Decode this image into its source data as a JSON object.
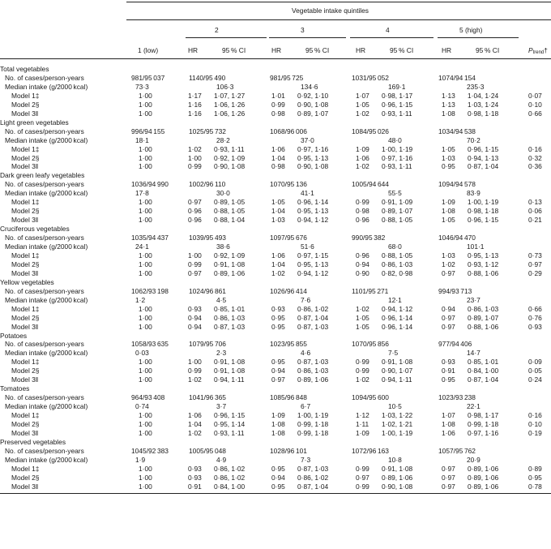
{
  "header": {
    "super": "Vegetable intake quintiles",
    "q1": "1 (low)",
    "q2": "2",
    "q3": "3",
    "q4": "4",
    "q5": "5 (high)",
    "hr": "HR",
    "ci": "95 % CI",
    "ptrend_main": "P",
    "ptrend_sub": "trend",
    "ptrend_mark": "†"
  },
  "sections": [
    {
      "title": "Total vegetables",
      "cases": [
        "981/95 037",
        "1140/95 490",
        "981/95 725",
        "1031/95 052",
        "1074/94 154"
      ],
      "median": [
        "73·3",
        "106·3",
        "134·6",
        "169·1",
        "235·3"
      ],
      "models": [
        {
          "label": "Model 1‡",
          "q1": "1·00",
          "hr2": "1·17",
          "ci2": "1·07, 1·27",
          "hr3": "1·01",
          "ci3": "0·92, 1·10",
          "hr4": "1·07",
          "ci4": "0·98, 1·17",
          "hr5": "1·13",
          "ci5": "1·04, 1·24",
          "p": "0·07"
        },
        {
          "label": "Model 2§",
          "q1": "1·00",
          "hr2": "1·16",
          "ci2": "1·06, 1·26",
          "hr3": "0·99",
          "ci3": "0·90, 1·08",
          "hr4": "1·05",
          "ci4": "0·96, 1·15",
          "hr5": "1·13",
          "ci5": "1·03, 1·24",
          "p": "0·10"
        },
        {
          "label": "Model 3‖",
          "q1": "1·00",
          "hr2": "1·16",
          "ci2": "1·06, 1·26",
          "hr3": "0·98",
          "ci3": "0·89, 1·07",
          "hr4": "1·02",
          "ci4": "0·93, 1·11",
          "hr5": "1·08",
          "ci5": "0·98, 1·18",
          "p": "0·66"
        }
      ]
    },
    {
      "title": "Light green vegetables",
      "cases": [
        "996/94 155",
        "1025/95 732",
        "1068/96 006",
        "1084/95 026",
        "1034/94 538"
      ],
      "median": [
        "18·1",
        "28·2",
        "37·0",
        "48·0",
        "70·2"
      ],
      "models": [
        {
          "label": "Model 1‡",
          "q1": "1·00",
          "hr2": "1·02",
          "ci2": "0·93, 1·11",
          "hr3": "1·06",
          "ci3": "0·97, 1·16",
          "hr4": "1·09",
          "ci4": "1·00, 1·19",
          "hr5": "1·05",
          "ci5": "0·96, 1·15",
          "p": "0·16"
        },
        {
          "label": "Model 2§",
          "q1": "1·00",
          "hr2": "1·00",
          "ci2": "0·92, 1·09",
          "hr3": "1·04",
          "ci3": "0·95, 1·13",
          "hr4": "1·06",
          "ci4": "0·97, 1·16",
          "hr5": "1·03",
          "ci5": "0·94, 1·13",
          "p": "0·32"
        },
        {
          "label": "Model 3‖",
          "q1": "1·00",
          "hr2": "0·99",
          "ci2": "0·90, 1·08",
          "hr3": "0·98",
          "ci3": "0·90, 1·08",
          "hr4": "1·02",
          "ci4": "0·93, 1·11",
          "hr5": "0·95",
          "ci5": "0·87, 1·04",
          "p": "0·36"
        }
      ]
    },
    {
      "title": "Dark green leafy vegetables",
      "cases": [
        "1036/94 990",
        "1002/96 110",
        "1070/95 136",
        "1005/94 644",
        "1094/94 578"
      ],
      "median": [
        "17·8",
        "30·0",
        "41·1",
        "55·5",
        "83·9"
      ],
      "models": [
        {
          "label": "Model 1‡",
          "q1": "1·00",
          "hr2": "0·97",
          "ci2": "0·89, 1·05",
          "hr3": "1·05",
          "ci3": "0·96, 1·14",
          "hr4": "0·99",
          "ci4": "0·91, 1·09",
          "hr5": "1·09",
          "ci5": "1·00, 1·19",
          "p": "0·13"
        },
        {
          "label": "Model 2§",
          "q1": "1·00",
          "hr2": "0·96",
          "ci2": "0·88, 1·05",
          "hr3": "1·04",
          "ci3": "0·95, 1·13",
          "hr4": "0·98",
          "ci4": "0·89, 1·07",
          "hr5": "1·08",
          "ci5": "0·98, 1·18",
          "p": "0·06"
        },
        {
          "label": "Model 3‖",
          "q1": "1·00",
          "hr2": "0·96",
          "ci2": "0·88, 1·04",
          "hr3": "1·03",
          "ci3": "0·94, 1·12",
          "hr4": "0·96",
          "ci4": "0·88, 1·05",
          "hr5": "1·05",
          "ci5": "0·96, 1·15",
          "p": "0·21"
        }
      ]
    },
    {
      "title": "Cruciferous vegetables",
      "cases": [
        "1035/94 437",
        "1039/95 493",
        "1097/95 676",
        "990/95 382",
        "1046/94 470"
      ],
      "median": [
        "24·1",
        "38·6",
        "51·6",
        "68·0",
        "101·1"
      ],
      "models": [
        {
          "label": "Model 1‡",
          "q1": "1·00",
          "hr2": "1·00",
          "ci2": "0·92, 1·09",
          "hr3": "1·06",
          "ci3": "0·97, 1·15",
          "hr4": "0·96",
          "ci4": "0·88, 1·05",
          "hr5": "1·03",
          "ci5": "0·95, 1·13",
          "p": "0·73"
        },
        {
          "label": "Model 2§",
          "q1": "1·00",
          "hr2": "0·99",
          "ci2": "0·91, 1·08",
          "hr3": "1·04",
          "ci3": "0·95, 1·13",
          "hr4": "0·94",
          "ci4": "0·86, 1·03",
          "hr5": "1·02",
          "ci5": "0·93, 1·12",
          "p": "0·97"
        },
        {
          "label": "Model 3‖",
          "q1": "1·00",
          "hr2": "0·97",
          "ci2": "0·89, 1·06",
          "hr3": "1·02",
          "ci3": "0·94, 1·12",
          "hr4": "0·90",
          "ci4": "0·82, 0·98",
          "hr5": "0·97",
          "ci5": "0·88, 1·06",
          "p": "0·29"
        }
      ]
    },
    {
      "title": "Yellow vegetables",
      "cases": [
        "1062/93 198",
        "1024/96 861",
        "1026/96 414",
        "1101/95 271",
        "994/93 713"
      ],
      "median": [
        "1·2",
        "4·5",
        "7·6",
        "12·1",
        "23·7"
      ],
      "models": [
        {
          "label": "Model 1‡",
          "q1": "1·00",
          "hr2": "0·93",
          "ci2": "0·85, 1·01",
          "hr3": "0·93",
          "ci3": "0·86, 1·02",
          "hr4": "1·02",
          "ci4": "0·94, 1·12",
          "hr5": "0·94",
          "ci5": "0·86, 1·03",
          "p": "0·66"
        },
        {
          "label": "Model 2§",
          "q1": "1·00",
          "hr2": "0·94",
          "ci2": "0·86, 1·03",
          "hr3": "0·95",
          "ci3": "0·87, 1·04",
          "hr4": "1·05",
          "ci4": "0·96, 1·14",
          "hr5": "0·97",
          "ci5": "0·89, 1·07",
          "p": "0·76"
        },
        {
          "label": "Model 3‖",
          "q1": "1·00",
          "hr2": "0·94",
          "ci2": "0·87, 1·03",
          "hr3": "0·95",
          "ci3": "0·87, 1·03",
          "hr4": "1·05",
          "ci4": "0·96, 1·14",
          "hr5": "0·97",
          "ci5": "0·88, 1·06",
          "p": "0·93"
        }
      ]
    },
    {
      "title": "Potatoes",
      "cases": [
        "1058/93 635",
        "1079/95 706",
        "1023/95 855",
        "1070/95 856",
        "977/94 406"
      ],
      "median": [
        "0·03",
        "2·3",
        "4·6",
        "7·5",
        "14·7"
      ],
      "models": [
        {
          "label": "Model 1‡",
          "q1": "1·00",
          "hr2": "1·00",
          "ci2": "0·91, 1·08",
          "hr3": "0·95",
          "ci3": "0·87, 1·03",
          "hr4": "0·99",
          "ci4": "0·91, 1·08",
          "hr5": "0·93",
          "ci5": "0·85, 1·01",
          "p": "0·09"
        },
        {
          "label": "Model 2§",
          "q1": "1·00",
          "hr2": "0·99",
          "ci2": "0·91, 1·08",
          "hr3": "0·94",
          "ci3": "0·86, 1·03",
          "hr4": "0·99",
          "ci4": "0·90, 1·07",
          "hr5": "0·91",
          "ci5": "0·84, 1·00",
          "p": "0·05"
        },
        {
          "label": "Model 3‖",
          "q1": "1·00",
          "hr2": "1·02",
          "ci2": "0·94, 1·11",
          "hr3": "0·97",
          "ci3": "0·89, 1·06",
          "hr4": "1·02",
          "ci4": "0·94, 1·11",
          "hr5": "0·95",
          "ci5": "0·87, 1·04",
          "p": "0·24"
        }
      ]
    },
    {
      "title": "Tomatoes",
      "cases": [
        "964/93 408",
        "1041/96 365",
        "1085/96 848",
        "1094/95 600",
        "1023/93 238"
      ],
      "median": [
        "0·74",
        "3·7",
        "6·7",
        "10·5",
        "22·1"
      ],
      "models": [
        {
          "label": "Model 1‡",
          "q1": "1·00",
          "hr2": "1·06",
          "ci2": "0·96, 1·15",
          "hr3": "1·09",
          "ci3": "1·00, 1·19",
          "hr4": "1·12",
          "ci4": "1·03, 1·22",
          "hr5": "1·07",
          "ci5": "0·98, 1·17",
          "p": "0·16"
        },
        {
          "label": "Model 2§",
          "q1": "1·00",
          "hr2": "1·04",
          "ci2": "0·95, 1·14",
          "hr3": "1·08",
          "ci3": "0·99, 1·18",
          "hr4": "1·11",
          "ci4": "1·02, 1·21",
          "hr5": "1·08",
          "ci5": "0·99, 1·18",
          "p": "0·10"
        },
        {
          "label": "Model 3‖",
          "q1": "1·00",
          "hr2": "1·02",
          "ci2": "0·93, 1·11",
          "hr3": "1·08",
          "ci3": "0·99, 1·18",
          "hr4": "1·09",
          "ci4": "1·00, 1·19",
          "hr5": "1·06",
          "ci5": "0·97, 1·16",
          "p": "0·19"
        }
      ]
    },
    {
      "title": "Preserved vegetables",
      "cases": [
        "1045/92 383",
        "1005/95 048",
        "1028/96 101",
        "1072/96 163",
        "1057/95 762"
      ],
      "median": [
        "1·9",
        "4·9",
        "7·3",
        "10·8",
        "20·9"
      ],
      "models": [
        {
          "label": "Model 1‡",
          "q1": "1·00",
          "hr2": "0·93",
          "ci2": "0·86, 1·02",
          "hr3": "0·95",
          "ci3": "0·87, 1·03",
          "hr4": "0·99",
          "ci4": "0·91, 1·08",
          "hr5": "0·97",
          "ci5": "0·89, 1·06",
          "p": "0·89"
        },
        {
          "label": "Model 2§",
          "q1": "1·00",
          "hr2": "0·93",
          "ci2": "0·86, 1·02",
          "hr3": "0·94",
          "ci3": "0·86, 1·02",
          "hr4": "0·97",
          "ci4": "0·89, 1·06",
          "hr5": "0·97",
          "ci5": "0·89, 1·06",
          "p": "0·95"
        },
        {
          "label": "Model 3‖",
          "q1": "1·00",
          "hr2": "0·91",
          "ci2": "0·84, 1·00",
          "hr3": "0·95",
          "ci3": "0·87, 1·04",
          "hr4": "0·99",
          "ci4": "0·90, 1·08",
          "hr5": "0·97",
          "ci5": "0·89, 1·06",
          "p": "0·78"
        }
      ]
    }
  ],
  "row_labels": {
    "cases": "No. of cases/person-years",
    "median": "Median intake (g/2000 kcal)"
  }
}
